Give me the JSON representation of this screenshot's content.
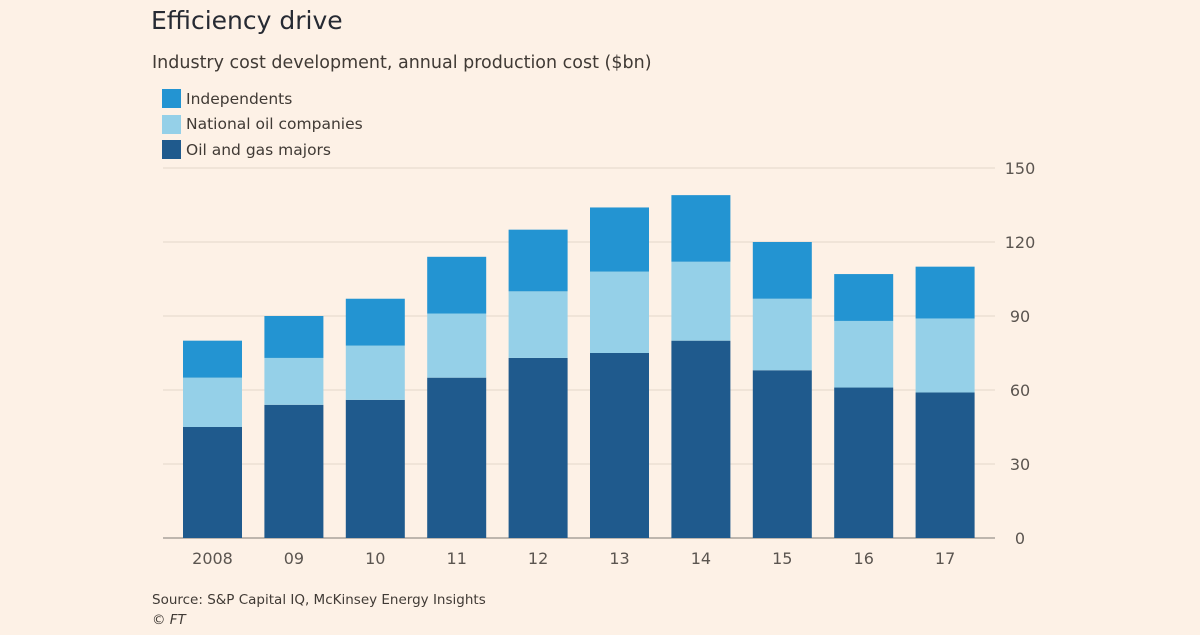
{
  "chart_data": {
    "type": "bar",
    "stacked": true,
    "title": "Efficiency drive",
    "subtitle": "Industry cost development, annual production cost ($bn)",
    "categories": [
      "2008",
      "09",
      "10",
      "11",
      "12",
      "13",
      "14",
      "15",
      "16",
      "17"
    ],
    "series": [
      {
        "name": "Oil and gas majors",
        "color": "#1f5a8d",
        "values": [
          45,
          54,
          56,
          65,
          73,
          75,
          80,
          68,
          61,
          59
        ]
      },
      {
        "name": "National oil companies",
        "color": "#95d0e8",
        "values": [
          20,
          19,
          22,
          26,
          27,
          33,
          32,
          29,
          27,
          30
        ]
      },
      {
        "name": "Independents",
        "color": "#2394d2",
        "values": [
          15,
          17,
          19,
          23,
          25,
          26,
          27,
          23,
          19,
          21
        ]
      }
    ],
    "legend_order": [
      "Independents",
      "National oil companies",
      "Oil and gas majors"
    ],
    "ylim": [
      0,
      150
    ],
    "yticks": [
      0,
      30,
      60,
      90,
      120,
      150
    ],
    "y_axis_side": "right",
    "grid": true,
    "legend_position": "top-left",
    "source": "Source: S&P Capital IQ, McKinsey Energy Insights",
    "credit": "© FT"
  }
}
